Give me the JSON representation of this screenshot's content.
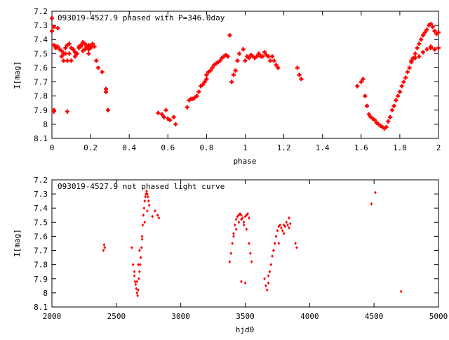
{
  "colors": {
    "points": "#ff0000",
    "axes": "#000000",
    "background": "#ffffff"
  },
  "chart_data": [
    {
      "type": "scatter",
      "title": "093019-4527.9 phased with P=346.0day",
      "xlabel": "phase",
      "ylabel": "I[mag]",
      "xlim": [
        0,
        2
      ],
      "ylim": [
        7.2,
        8.1
      ],
      "y_inverted": true,
      "grid": false,
      "xticks": [
        "0",
        "0.2",
        "0.4",
        "0.6",
        "0.8",
        "1",
        "1.2",
        "1.4",
        "1.6",
        "1.8",
        "2"
      ],
      "yticks": [
        "7.2",
        "7.3",
        "7.4",
        "7.5",
        "7.6",
        "7.7",
        "7.8",
        "7.9",
        "8",
        "8.1"
      ],
      "marker": "filled-star",
      "series": [
        {
          "x": [
            0.0,
            0.0,
            0.01,
            0.01,
            0.02,
            0.03,
            0.03,
            0.04,
            0.05,
            0.06,
            0.07,
            0.08,
            0.09,
            0.1,
            0.11,
            0.12,
            0.13,
            0.14,
            0.15,
            0.16,
            0.17,
            0.18,
            0.19,
            0.2,
            0.21,
            0.01,
            0.06,
            0.08,
            0.1,
            0.12,
            0.15,
            0.17,
            0.19,
            0.2,
            0.02,
            0.05,
            0.07,
            0.09,
            0.11,
            0.14,
            0.16,
            0.18,
            0.19,
            0.2,
            0.22,
            0.01,
            0.08,
            0.23,
            0.24,
            0.26,
            0.28,
            0.28,
            0.29,
            0.55,
            0.57,
            0.58,
            0.59,
            0.6,
            0.61,
            0.63,
            0.64,
            0.7,
            0.71,
            0.72,
            0.73,
            0.74,
            0.75,
            0.76,
            0.77,
            0.78,
            0.79,
            0.8,
            0.8,
            0.81,
            0.82,
            0.83,
            0.84,
            0.85,
            0.86,
            0.87,
            0.88,
            0.89,
            0.9,
            0.91,
            0.92,
            0.93,
            0.94,
            0.95,
            0.96,
            0.97,
            0.99,
            1.0,
            1.01,
            1.02,
            1.03,
            1.04,
            1.05,
            1.06,
            1.07,
            1.08,
            1.09,
            1.1,
            1.11,
            1.12,
            1.13,
            1.14,
            1.15,
            1.16,
            1.17,
            1.27,
            1.28,
            1.29,
            1.58,
            1.6,
            1.61,
            1.62,
            1.63,
            1.64,
            1.65,
            1.66,
            1.67,
            1.68,
            1.69,
            1.7,
            1.71,
            1.72,
            1.73,
            1.74,
            1.75,
            1.76,
            1.77,
            1.78,
            1.79,
            1.8,
            1.81,
            1.82,
            1.83,
            1.84,
            1.85,
            1.86,
            1.87,
            1.88,
            1.89,
            1.9,
            1.91,
            1.92,
            1.93,
            1.94,
            1.95,
            1.96,
            1.97,
            1.98,
            1.99,
            2.0,
            1.86,
            1.88,
            1.9,
            1.92,
            1.94,
            1.96,
            1.98,
            2.0,
            1.96,
            1.98
          ],
          "y": [
            7.25,
            7.34,
            7.31,
            7.44,
            7.46,
            7.45,
            7.32,
            7.47,
            7.52,
            7.55,
            7.5,
            7.44,
            7.43,
            7.46,
            7.47,
            7.49,
            7.5,
            7.45,
            7.44,
            7.42,
            7.43,
            7.46,
            7.47,
            7.45,
            7.43,
            7.9,
            7.5,
            7.55,
            7.55,
            7.52,
            7.45,
            7.47,
            7.5,
            7.45,
            7.45,
            7.48,
            7.46,
            7.5,
            7.47,
            7.46,
            7.48,
            7.45,
            7.44,
            7.46,
            7.45,
            7.91,
            7.91,
            7.55,
            7.6,
            7.63,
            7.75,
            7.77,
            7.9,
            7.92,
            7.93,
            7.95,
            7.9,
            7.96,
            7.97,
            7.95,
            8.0,
            7.88,
            7.83,
            7.82,
            7.82,
            7.81,
            7.8,
            7.77,
            7.73,
            7.72,
            7.7,
            7.68,
            7.65,
            7.63,
            7.62,
            7.6,
            7.58,
            7.57,
            7.56,
            7.55,
            7.53,
            7.52,
            7.51,
            7.52,
            7.37,
            7.7,
            7.65,
            7.62,
            7.55,
            7.5,
            7.47,
            7.55,
            7.52,
            7.53,
            7.51,
            7.52,
            7.53,
            7.52,
            7.5,
            7.52,
            7.52,
            7.49,
            7.51,
            7.52,
            7.55,
            7.52,
            7.55,
            7.58,
            7.6,
            7.6,
            7.65,
            7.68,
            7.73,
            7.7,
            7.68,
            7.8,
            7.87,
            7.93,
            7.95,
            7.96,
            7.97,
            7.99,
            8.0,
            8.01,
            8.02,
            8.03,
            8.02,
            7.98,
            7.95,
            7.9,
            7.87,
            7.83,
            7.8,
            7.77,
            7.73,
            7.7,
            7.67,
            7.63,
            7.6,
            7.56,
            7.53,
            7.5,
            7.46,
            7.43,
            7.4,
            7.37,
            7.35,
            7.33,
            7.3,
            7.29,
            7.31,
            7.34,
            7.36,
            7.35,
            7.55,
            7.53,
            7.52,
            7.49,
            7.47,
            7.46,
            7.47,
            7.46,
            7.45,
            7.47
          ]
        }
      ]
    },
    {
      "type": "scatter",
      "title": "093019-4527.9 not phased light curve",
      "xlabel": "hjd0",
      "ylabel": "I[mag]",
      "xlim": [
        2000,
        5000
      ],
      "ylim": [
        7.2,
        8.1
      ],
      "y_inverted": true,
      "grid": false,
      "xticks": [
        "2000",
        "2500",
        "3000",
        "3500",
        "4000",
        "4500",
        "5000"
      ],
      "yticks": [
        "7.2",
        "7.3",
        "7.4",
        "7.5",
        "7.6",
        "7.7",
        "7.8",
        "7.9",
        "8",
        "8.1"
      ],
      "marker": "filled-diamond",
      "series": [
        {
          "x": [
            2400,
            2410,
            2405,
            2620,
            2630,
            2640,
            2645,
            2650,
            2655,
            2660,
            2665,
            2670,
            2675,
            2680,
            2685,
            2690,
            2695,
            2700,
            2705,
            2710,
            2715,
            2720,
            2725,
            2730,
            2735,
            2740,
            2745,
            2750,
            2755,
            2640,
            2660,
            2670,
            2680,
            2700,
            2720,
            2740,
            2780,
            2800,
            2820,
            2830,
            3380,
            3390,
            3400,
            3410,
            3420,
            3430,
            3440,
            3450,
            3460,
            3470,
            3480,
            3490,
            3500,
            3510,
            3520,
            3530,
            3410,
            3430,
            3450,
            3470,
            3490,
            3510,
            3530,
            3470,
            3500,
            3540,
            3550,
            3650,
            3660,
            3670,
            3680,
            3690,
            3700,
            3710,
            3720,
            3730,
            3740,
            3750,
            3760,
            3770,
            3780,
            3790,
            3800,
            3810,
            3820,
            3830,
            3840,
            3850,
            3680,
            3720,
            3760,
            3800,
            3840,
            3890,
            3900,
            4480,
            4510,
            4710
          ],
          "y": [
            7.7,
            7.68,
            7.66,
            7.68,
            7.8,
            7.85,
            7.92,
            7.94,
            7.97,
            8.0,
            8.02,
            7.98,
            7.9,
            7.85,
            7.8,
            7.75,
            7.68,
            7.6,
            7.52,
            7.45,
            7.4,
            7.35,
            7.32,
            7.3,
            7.28,
            7.3,
            7.32,
            7.35,
            7.38,
            7.88,
            7.92,
            7.8,
            7.7,
            7.62,
            7.5,
            7.42,
            7.46,
            7.42,
            7.45,
            7.47,
            7.78,
            7.72,
            7.65,
            7.58,
            7.52,
            7.48,
            7.46,
            7.45,
            7.44,
            7.45,
            7.47,
            7.5,
            7.46,
            7.45,
            7.44,
            7.47,
            7.6,
            7.55,
            7.5,
            7.48,
            7.52,
            7.55,
            7.65,
            7.92,
            7.93,
            7.72,
            7.78,
            7.9,
            7.95,
            7.98,
            7.93,
            7.85,
            7.8,
            7.74,
            7.7,
            7.65,
            7.6,
            7.56,
            7.53,
            7.52,
            7.54,
            7.56,
            7.52,
            7.53,
            7.5,
            7.52,
            7.47,
            7.51,
            7.88,
            7.7,
            7.65,
            7.58,
            7.54,
            7.65,
            7.68,
            7.37,
            7.29,
            7.99
          ]
        }
      ]
    }
  ]
}
